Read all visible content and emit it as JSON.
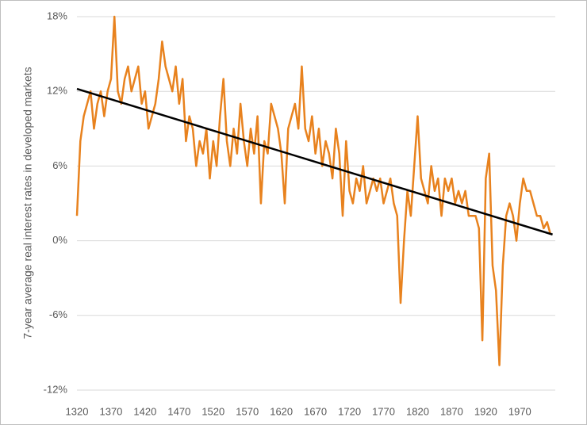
{
  "chart_data": {
    "type": "line",
    "y_label": "7-year average real interest rates in developed markets",
    "x": [
      1320,
      1325,
      1330,
      1335,
      1340,
      1345,
      1350,
      1355,
      1360,
      1365,
      1370,
      1375,
      1380,
      1385,
      1390,
      1395,
      1400,
      1405,
      1410,
      1415,
      1420,
      1425,
      1430,
      1435,
      1440,
      1445,
      1450,
      1455,
      1460,
      1465,
      1470,
      1475,
      1480,
      1485,
      1490,
      1495,
      1500,
      1505,
      1510,
      1515,
      1520,
      1525,
      1530,
      1535,
      1540,
      1545,
      1550,
      1555,
      1560,
      1565,
      1570,
      1575,
      1580,
      1585,
      1590,
      1595,
      1600,
      1605,
      1610,
      1615,
      1620,
      1625,
      1630,
      1635,
      1640,
      1645,
      1650,
      1655,
      1660,
      1665,
      1670,
      1675,
      1680,
      1685,
      1690,
      1695,
      1700,
      1705,
      1710,
      1715,
      1720,
      1725,
      1730,
      1735,
      1740,
      1745,
      1750,
      1755,
      1760,
      1765,
      1770,
      1775,
      1780,
      1785,
      1790,
      1795,
      1800,
      1805,
      1810,
      1815,
      1820,
      1825,
      1830,
      1835,
      1840,
      1845,
      1850,
      1855,
      1860,
      1865,
      1870,
      1875,
      1880,
      1885,
      1890,
      1895,
      1900,
      1905,
      1910,
      1915,
      1920,
      1925,
      1930,
      1935,
      1940,
      1945,
      1950,
      1955,
      1960,
      1965,
      1970,
      1975,
      1980,
      1985,
      1990,
      1995,
      2000,
      2005,
      2010,
      2015
    ],
    "series": [
      {
        "color": "#e8821e",
        "values": [
          2,
          8,
          10,
          11,
          12,
          9,
          11,
          12,
          10,
          12,
          13,
          18,
          12,
          11,
          13,
          14,
          12,
          13,
          14,
          11,
          12,
          9,
          10,
          11,
          13,
          16,
          14,
          13,
          12,
          14,
          11,
          13,
          8,
          10,
          9,
          6,
          8,
          7,
          9,
          5,
          8,
          6,
          10,
          13,
          8,
          6,
          9,
          7,
          11,
          8,
          6,
          9,
          7,
          10,
          3,
          8,
          7,
          11,
          10,
          9,
          7,
          3,
          9,
          10,
          11,
          9,
          14,
          9,
          8,
          10,
          7,
          9,
          6,
          8,
          7,
          5,
          9,
          7,
          2,
          8,
          4,
          3,
          5,
          4,
          6,
          3,
          4,
          5,
          4,
          5,
          3,
          4,
          5,
          3,
          2,
          -5,
          0,
          4,
          2,
          6,
          10,
          5,
          4,
          3,
          6,
          4,
          5,
          2,
          5,
          4,
          5,
          3,
          4,
          3,
          4,
          2,
          2,
          2,
          1,
          -8,
          5,
          7,
          -2,
          -4,
          -10,
          -2,
          2,
          3,
          2,
          0,
          3,
          5,
          4,
          4,
          3,
          2,
          2,
          1,
          1.5,
          0.5
        ]
      },
      {
        "color": "#000000",
        "x": [
          1320,
          2018
        ],
        "values": [
          12.2,
          0.5
        ]
      }
    ],
    "xlim": [
      1320,
      2022
    ],
    "xticks": [
      1320,
      1370,
      1420,
      1470,
      1520,
      1570,
      1620,
      1670,
      1720,
      1770,
      1820,
      1870,
      1920,
      1970
    ],
    "ylim": [
      -12,
      18
    ],
    "yticks": [
      {
        "value": -12,
        "label": "-12%"
      },
      {
        "value": -6,
        "label": "-6%"
      },
      {
        "value": 0,
        "label": "0%"
      },
      {
        "value": 6,
        "label": "6%"
      },
      {
        "value": 12,
        "label": "12%"
      },
      {
        "value": 18,
        "label": "18%"
      }
    ],
    "grid": true
  }
}
